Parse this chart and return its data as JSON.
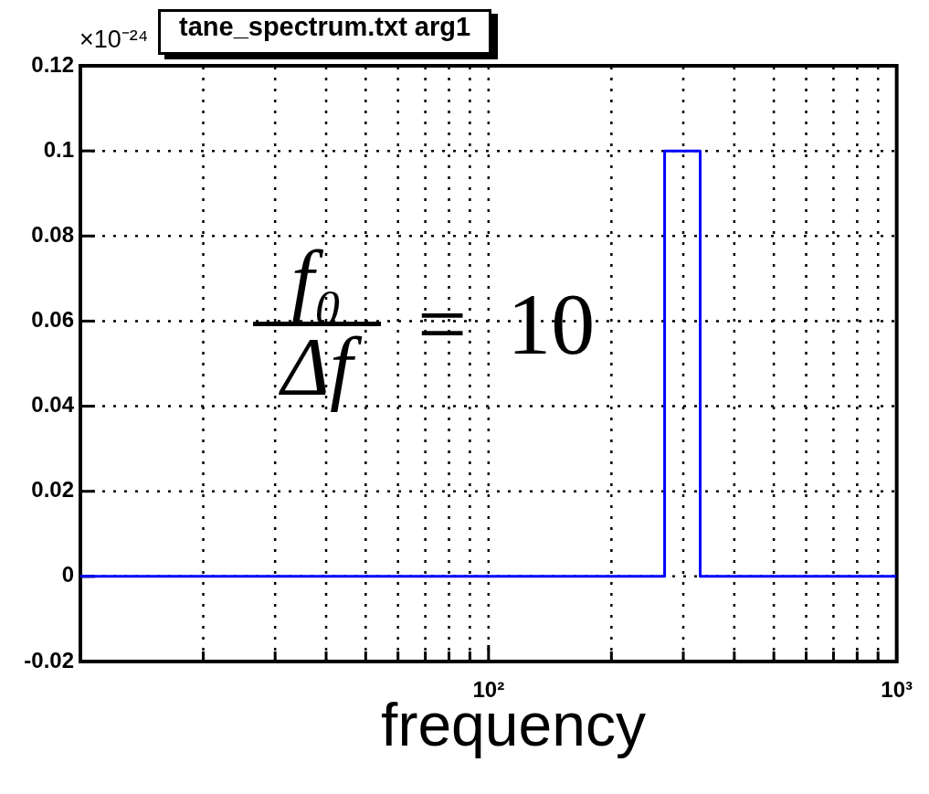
{
  "chart_data": {
    "type": "step",
    "title": "tane_spectrum.txt arg1",
    "xlabel": "frequency",
    "annotations": [
      "×10⁻²⁴",
      "f₀",
      "Δf",
      "= 10"
    ],
    "series": [
      {
        "color": "#0000ff",
        "x": [
          10,
          270,
          330,
          1000
        ],
        "values": [
          0,
          0.1,
          0,
          0
        ]
      }
    ],
    "xlim": [
      10,
      1000
    ],
    "ylim": [
      -0.02,
      0.12
    ],
    "xticks": [
      {
        "value": 20,
        "label": null
      },
      {
        "value": 30,
        "label": null
      },
      {
        "value": 40,
        "label": null
      },
      {
        "value": 50,
        "label": null
      },
      {
        "value": 60,
        "label": null
      },
      {
        "value": 70,
        "label": null
      },
      {
        "value": 80,
        "label": null
      },
      {
        "value": 90,
        "label": null
      },
      {
        "value": 100,
        "label": "10²"
      },
      {
        "value": 200,
        "label": null
      },
      {
        "value": 300,
        "label": null
      },
      {
        "value": 400,
        "label": null
      },
      {
        "value": 500,
        "label": null
      },
      {
        "value": 600,
        "label": null
      },
      {
        "value": 700,
        "label": null
      },
      {
        "value": 800,
        "label": null
      },
      {
        "value": 900,
        "label": null
      },
      {
        "value": 1000,
        "label": "10³"
      }
    ],
    "yticks": [
      -0.02,
      0,
      0.02,
      0.04,
      0.06,
      0.08,
      0.1,
      0.12
    ],
    "log": "x",
    "grid": true
  }
}
